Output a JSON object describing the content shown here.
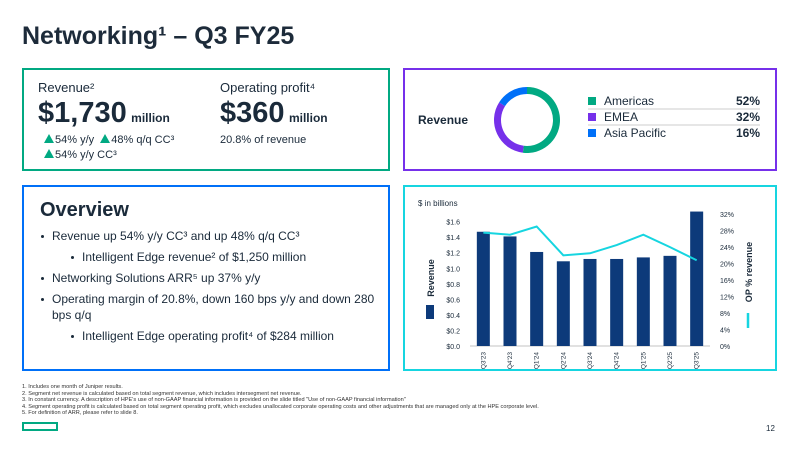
{
  "title": "Networking¹ – Q3 FY25",
  "revenue": {
    "label": "Revenue²",
    "amount": "$1,730",
    "unit": "million",
    "changes": [
      "54% y/y",
      "48% q/q CC³",
      "54% y/y CC³"
    ]
  },
  "operating_profit": {
    "label": "Operating profit⁴",
    "amount": "$360",
    "unit": "million",
    "note": "20.8% of revenue"
  },
  "overview": {
    "title": "Overview",
    "bullets": [
      {
        "text": "Revenue up 54% y/y CC³ and up 48% q/q CC³",
        "level": 1
      },
      {
        "text": "Intelligent Edge revenue² of $1,250 million",
        "level": 2
      },
      {
        "text": "Networking Solutions ARR⁵ up 37% y/y",
        "level": 1
      },
      {
        "text": "Operating margin of 20.8%, down 160 bps y/y and down 280 bps q/q",
        "level": 1
      },
      {
        "text": "Intelligent Edge operating profit⁴ of $284 million",
        "level": 2
      }
    ]
  },
  "chart_data": [
    {
      "type": "pie",
      "title": "Revenue",
      "categories": [
        "Americas",
        "EMEA",
        "Asia Pacific"
      ],
      "values": [
        52,
        32,
        16
      ],
      "value_labels": [
        "52%",
        "32%",
        "16%"
      ],
      "colors": [
        "#01a982",
        "#7630ea",
        "#0070f8"
      ]
    },
    {
      "type": "bar",
      "subtitle": "$ in billions",
      "categories": [
        "Q3'23",
        "Q4'23",
        "Q1'24",
        "Q2'24",
        "Q3'24",
        "Q4'24",
        "Q1'25",
        "Q2'25",
        "Q3'25"
      ],
      "series": [
        {
          "name": "Revenue",
          "color": "#0d3a7a",
          "values": [
            1.47,
            1.41,
            1.21,
            1.09,
            1.12,
            1.12,
            1.14,
            1.16,
            1.73
          ]
        },
        {
          "name": "OP % revenue",
          "color": "#16d5e0",
          "type": "line",
          "axis": "y2",
          "values": [
            27.5,
            27,
            29,
            22,
            22.5,
            24.5,
            27,
            24,
            20.8
          ]
        }
      ],
      "ylim": [
        0,
        1.75
      ],
      "yticks": [
        {
          "value": 0,
          "label": "$0.0"
        },
        {
          "value": 0.2,
          "label": "$0.2"
        },
        {
          "value": 0.4,
          "label": "$0.4"
        },
        {
          "value": 0.6,
          "label": "$0.6"
        },
        {
          "value": 0.8,
          "label": "$0.8"
        },
        {
          "value": 1.0,
          "label": "$1.0"
        },
        {
          "value": 1.2,
          "label": "$1.2"
        },
        {
          "value": 1.4,
          "label": "$1.4"
        },
        {
          "value": 1.6,
          "label": "$1.6"
        }
      ],
      "y2lim": [
        0,
        33
      ],
      "y2ticks": [
        {
          "value": 0,
          "label": "0%"
        },
        {
          "value": 4,
          "label": "4%"
        },
        {
          "value": 8,
          "label": "8%"
        },
        {
          "value": 12,
          "label": "12%"
        },
        {
          "value": 16,
          "label": "16%"
        },
        {
          "value": 20,
          "label": "20%"
        },
        {
          "value": 24,
          "label": "24%"
        },
        {
          "value": 28,
          "label": "28%"
        },
        {
          "value": 32,
          "label": "32%"
        }
      ]
    }
  ],
  "footnotes": [
    "1. Includes one month of Juniper results.",
    "2. Segment net revenue is calculated based on total segment revenue, which includes intersegment net revenue.",
    "3. In constant currency. A description of HPE's use of non-GAAP financial information is provided on the slide titled \"Use of non-GAAP financial information\"",
    "4. Segment operating profit is calculated based on total segment operating profit, which excludes unallocated corporate operating costs and other adjustments that are managed only at the HPE corporate level.",
    "5. For definition of ARR, please refer to slide 8."
  ],
  "page_number": "12"
}
